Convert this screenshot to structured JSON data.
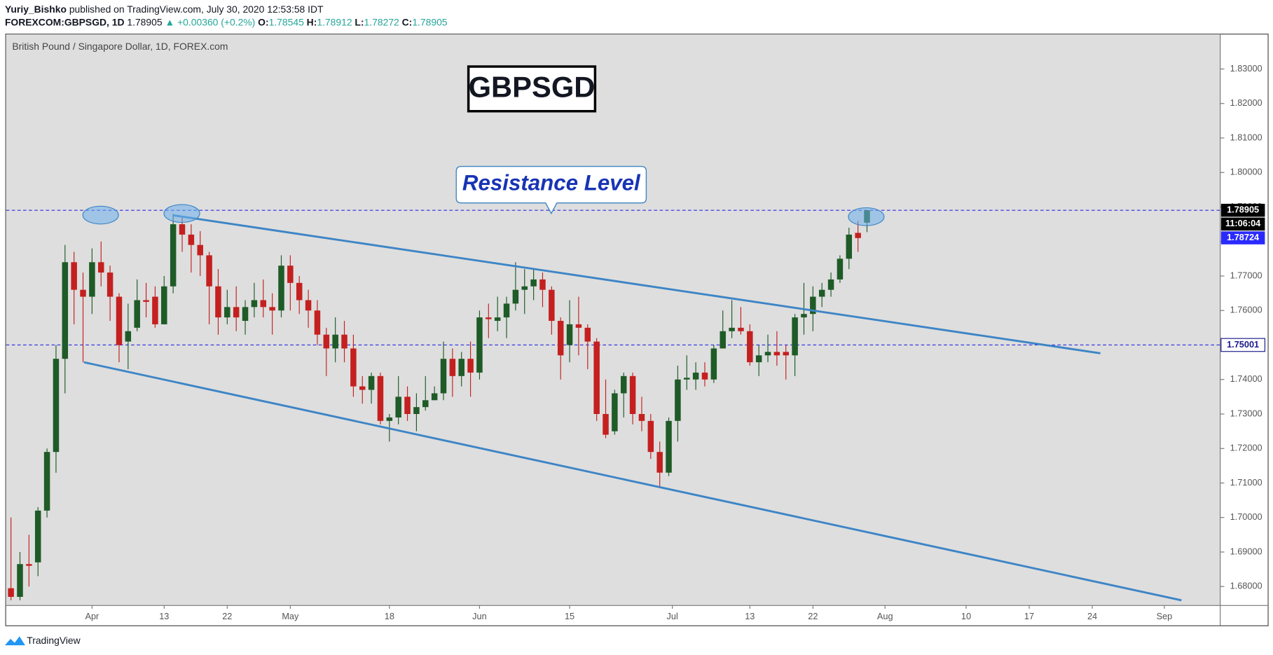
{
  "header": {
    "author": "Yuriy_Bishko",
    "published": "published on TradingView.com, July 30, 2020 12:53:58 IDT",
    "symbol": "FOREXCOM:GBPSGD, 1D",
    "last": "1.78905",
    "change": "▲ +0.00360 (+0.2%)",
    "ohlc": [
      {
        "label": "O:",
        "value": "1.78545"
      },
      {
        "label": "H:",
        "value": "1.78912"
      },
      {
        "label": "L:",
        "value": "1.78272"
      },
      {
        "label": "C:",
        "value": "1.78905"
      }
    ]
  },
  "chart_data": {
    "type": "candlestick",
    "subtitle": "British Pound / Singapore Dollar, 1D, FOREX.com",
    "title": "GBPSGD",
    "annotation": "Resistance Level",
    "up_color": "#1e5b27",
    "down_color": "#c4201f",
    "open": [
      1.6795,
      1.677,
      1.6865,
      1.687,
      1.702,
      1.719,
      1.746,
      1.774,
      1.766,
      1.764,
      1.774,
      1.771,
      1.764,
      1.751,
      1.755,
      1.763,
      1.764,
      1.756,
      1.767,
      1.785,
      1.782,
      1.779,
      1.776,
      1.767,
      1.758,
      1.761,
      1.757,
      1.761,
      1.763,
      1.761,
      1.76,
      1.773,
      1.768,
      1.763,
      1.76,
      1.753,
      1.749,
      1.753,
      1.749,
      1.738,
      1.737,
      1.741,
      1.728,
      1.729,
      1.735,
      1.73,
      1.732,
      1.734,
      1.736,
      1.746,
      1.741,
      1.746,
      1.742,
      1.758,
      1.757,
      1.758,
      1.762,
      1.766,
      1.767,
      1.769,
      1.766,
      1.757,
      1.75,
      1.756,
      1.755,
      1.751,
      1.73,
      1.725,
      1.736,
      1.741,
      1.73,
      1.728,
      1.719,
      1.713,
      1.728,
      1.74,
      1.74,
      1.742,
      1.74,
      1.749,
      1.754,
      1.755,
      1.754,
      1.745,
      1.747,
      1.748,
      1.748,
      1.747,
      1.758,
      1.759,
      1.764,
      1.766,
      1.769,
      1.775,
      1.7825,
      1.78545
    ],
    "high": [
      1.7,
      1.69,
      1.695,
      1.703,
      1.72,
      1.75,
      1.779,
      1.777,
      1.771,
      1.778,
      1.78,
      1.773,
      1.765,
      1.762,
      1.769,
      1.768,
      1.767,
      1.77,
      1.788,
      1.787,
      1.785,
      1.783,
      1.777,
      1.772,
      1.766,
      1.767,
      1.763,
      1.768,
      1.769,
      1.765,
      1.776,
      1.776,
      1.77,
      1.766,
      1.763,
      1.755,
      1.758,
      1.757,
      1.753,
      1.741,
      1.742,
      1.742,
      1.73,
      1.741,
      1.738,
      1.736,
      1.741,
      1.738,
      1.751,
      1.749,
      1.748,
      1.751,
      1.76,
      1.762,
      1.764,
      1.764,
      1.774,
      1.772,
      1.772,
      1.771,
      1.767,
      1.758,
      1.763,
      1.764,
      1.756,
      1.752,
      1.74,
      1.737,
      1.742,
      1.742,
      1.735,
      1.73,
      1.722,
      1.729,
      1.744,
      1.747,
      1.745,
      1.745,
      1.75,
      1.76,
      1.763,
      1.761,
      1.756,
      1.75,
      1.753,
      1.754,
      1.75,
      1.759,
      1.768,
      1.767,
      1.768,
      1.771,
      1.776,
      1.784,
      1.786,
      1.78912
    ],
    "low": [
      1.676,
      1.676,
      1.68,
      1.683,
      1.7,
      1.713,
      1.736,
      1.756,
      1.745,
      1.759,
      1.767,
      1.757,
      1.745,
      1.743,
      1.754,
      1.758,
      1.755,
      1.756,
      1.765,
      1.777,
      1.771,
      1.77,
      1.756,
      1.753,
      1.756,
      1.754,
      1.753,
      1.758,
      1.758,
      1.753,
      1.758,
      1.76,
      1.759,
      1.755,
      1.75,
      1.741,
      1.745,
      1.745,
      1.735,
      1.733,
      1.733,
      1.727,
      1.722,
      1.727,
      1.728,
      1.725,
      1.731,
      1.734,
      1.734,
      1.735,
      1.738,
      1.735,
      1.74,
      1.752,
      1.754,
      1.752,
      1.76,
      1.759,
      1.763,
      1.761,
      1.753,
      1.74,
      1.745,
      1.747,
      1.743,
      1.728,
      1.723,
      1.724,
      1.729,
      1.727,
      1.725,
      1.717,
      1.709,
      1.712,
      1.722,
      1.737,
      1.737,
      1.738,
      1.739,
      1.749,
      1.752,
      1.753,
      1.744,
      1.741,
      1.745,
      1.744,
      1.74,
      1.741,
      1.753,
      1.754,
      1.761,
      1.764,
      1.768,
      1.772,
      1.777,
      1.78272
    ],
    "close": [
      1.677,
      1.6865,
      1.686,
      1.702,
      1.719,
      1.746,
      1.774,
      1.766,
      1.764,
      1.774,
      1.771,
      1.764,
      1.75,
      1.754,
      1.763,
      1.7625,
      1.756,
      1.767,
      1.785,
      1.782,
      1.779,
      1.776,
      1.767,
      1.758,
      1.761,
      1.758,
      1.761,
      1.763,
      1.761,
      1.76,
      1.773,
      1.768,
      1.763,
      1.76,
      1.753,
      1.749,
      1.753,
      1.749,
      1.738,
      1.737,
      1.741,
      1.728,
      1.729,
      1.735,
      1.73,
      1.732,
      1.734,
      1.736,
      1.746,
      1.741,
      1.746,
      1.742,
      1.758,
      1.7575,
      1.758,
      1.762,
      1.766,
      1.767,
      1.769,
      1.766,
      1.757,
      1.747,
      1.756,
      1.755,
      1.751,
      1.73,
      1.724,
      1.736,
      1.741,
      1.73,
      1.728,
      1.719,
      1.713,
      1.728,
      1.74,
      1.7405,
      1.742,
      1.74,
      1.749,
      1.754,
      1.755,
      1.754,
      1.745,
      1.747,
      1.748,
      1.747,
      1.747,
      1.758,
      1.759,
      1.764,
      1.766,
      1.769,
      1.775,
      1.782,
      1.781,
      1.78905
    ],
    "xlim": [
      -0.54,
      134.2
    ],
    "xticks": [
      {
        "value": 9,
        "label": "Apr"
      },
      {
        "value": 17,
        "label": "13"
      },
      {
        "value": 24,
        "label": "22"
      },
      {
        "value": 31,
        "label": "May"
      },
      {
        "value": 42,
        "label": "18"
      },
      {
        "value": 52,
        "label": "Jun"
      },
      {
        "value": 62,
        "label": "15"
      },
      {
        "value": 73.4,
        "label": "Jul"
      },
      {
        "value": 82,
        "label": "13"
      },
      {
        "value": 89,
        "label": "22"
      },
      {
        "value": 97,
        "label": "Aug"
      },
      {
        "value": 106,
        "label": "10"
      },
      {
        "value": 113,
        "label": "17"
      },
      {
        "value": 120,
        "label": "24"
      },
      {
        "value": 128,
        "label": "Sep"
      }
    ],
    "ylim": [
      1.6745,
      1.84
    ],
    "yticks": [
      {
        "value": 1.68,
        "label": "1.68000"
      },
      {
        "value": 1.69,
        "label": "1.69000"
      },
      {
        "value": 1.7,
        "label": "1.70000"
      },
      {
        "value": 1.71,
        "label": "1.71000"
      },
      {
        "value": 1.72,
        "label": "1.72000"
      },
      {
        "value": 1.73,
        "label": "1.73000"
      },
      {
        "value": 1.74,
        "label": "1.74000"
      },
      {
        "value": 1.75,
        "label": "1.75000"
      },
      {
        "value": 1.76,
        "label": "1.76000"
      },
      {
        "value": 1.77,
        "label": "1.77000"
      },
      {
        "value": 1.78,
        "label": "1.78000"
      },
      {
        "value": 1.79,
        "label": "1.79000"
      },
      {
        "value": 1.8,
        "label": "1.80000"
      },
      {
        "value": 1.81,
        "label": "1.81000"
      },
      {
        "value": 1.82,
        "label": "1.82000"
      },
      {
        "value": 1.83,
        "label": "1.83000"
      }
    ],
    "grid": false,
    "trendlines": [
      {
        "x": [
          18,
          120.9
        ],
        "y": [
          1.7876,
          1.7476
        ],
        "color": "#3d85c6"
      },
      {
        "x": [
          8.1,
          129.9
        ],
        "y": [
          1.745,
          1.676
        ],
        "color": "#3d85c6"
      }
    ],
    "levels": [
      {
        "value": 1.78905,
        "label": "1.78905",
        "color": "#2929e0",
        "background": "#000000",
        "text_color": "#ffffff"
      },
      {
        "value": 1.75001,
        "label": "1.75001",
        "color": "#2929e0",
        "background": "#ffffff",
        "text_color": "#1a1a8c"
      }
    ],
    "countdown": "11:06:04",
    "bid_label": {
      "value": 1.78724,
      "label": "1.78724",
      "background": "#2a2aff"
    }
  },
  "footer": "TradingView"
}
